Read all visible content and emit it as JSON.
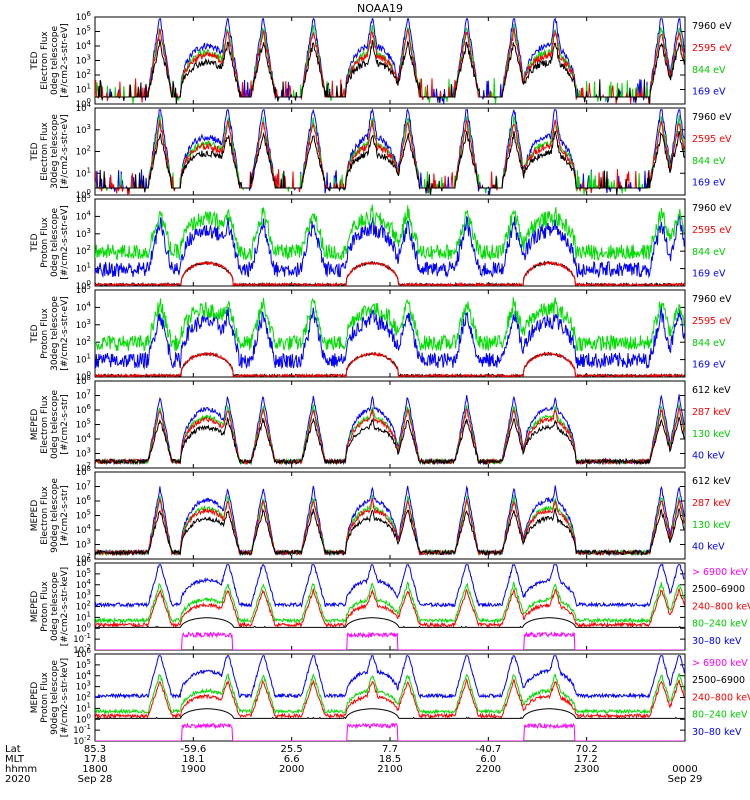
{
  "title": "NOAA19",
  "chart_data": [
    {
      "type": "line",
      "panel": 1,
      "ylabel_lines": [
        "TED",
        "Electron Flux",
        "0deg telescope",
        "[#/cm2-s-str-eV]"
      ],
      "ylim_exp": [
        0,
        6
      ],
      "legend": [
        {
          "label": "7960 eV",
          "color": "#000000"
        },
        {
          "label": "2595 eV",
          "color": "#ff0000"
        },
        {
          "label": "844 eV",
          "color": "#00dd00"
        },
        {
          "label": "169 eV",
          "color": "#0000ff"
        }
      ],
      "profile": "ted_e0",
      "series_order": [
        "#0000ff",
        "#00dd00",
        "#ff0000",
        "#000000"
      ]
    },
    {
      "type": "line",
      "panel": 2,
      "ylabel_lines": [
        "TED",
        "Electron Flux",
        "30deg telescope",
        "[#/cm2-s-str-eV]"
      ],
      "ylim_exp": [
        0,
        4
      ],
      "legend": [
        {
          "label": "7960 eV",
          "color": "#000000"
        },
        {
          "label": "2595 eV",
          "color": "#ff0000"
        },
        {
          "label": "844 eV",
          "color": "#00dd00"
        },
        {
          "label": "169 eV",
          "color": "#0000ff"
        }
      ],
      "profile": "ted_e30",
      "series_order": [
        "#0000ff",
        "#00dd00",
        "#ff0000",
        "#000000"
      ]
    },
    {
      "type": "line",
      "panel": 3,
      "ylabel_lines": [
        "TED",
        "Proton Flux",
        "0deg telescope",
        "[#/cm2-s-str-eV]"
      ],
      "ylim_exp": [
        0,
        5
      ],
      "legend": [
        {
          "label": "7960 eV",
          "color": "#000000"
        },
        {
          "label": "2595 eV",
          "color": "#ff0000"
        },
        {
          "label": "844 eV",
          "color": "#00dd00"
        },
        {
          "label": "169 eV",
          "color": "#0000ff"
        }
      ],
      "profile": "ted_p0",
      "series_order": [
        "#000000",
        "#ff0000",
        "#0000ff",
        "#00dd00"
      ]
    },
    {
      "type": "line",
      "panel": 4,
      "ylabel_lines": [
        "TED",
        "Proton Flux",
        "30deg telescope",
        "[#/cm2-s-str-eV]"
      ],
      "ylim_exp": [
        0,
        5
      ],
      "legend": [
        {
          "label": "7960 eV",
          "color": "#000000"
        },
        {
          "label": "2595 eV",
          "color": "#ff0000"
        },
        {
          "label": "844 eV",
          "color": "#00dd00"
        },
        {
          "label": "169 eV",
          "color": "#0000ff"
        }
      ],
      "profile": "ted_p30",
      "series_order": [
        "#000000",
        "#ff0000",
        "#0000ff",
        "#00dd00"
      ]
    },
    {
      "type": "line",
      "panel": 5,
      "ylabel_lines": [
        "MEPED",
        "Electron Flux",
        "0deg telescope",
        "[#/cm2-s-str]"
      ],
      "ylim_exp": [
        2,
        8
      ],
      "legend": [
        {
          "label": "612 keV",
          "color": "#000000"
        },
        {
          "label": "287 keV",
          "color": "#ff0000"
        },
        {
          "label": "130 keV",
          "color": "#00dd00"
        },
        {
          "label": "40 keV",
          "color": "#0000ff"
        }
      ],
      "profile": "mep_e0",
      "series_order": [
        "#0000ff",
        "#00dd00",
        "#ff0000",
        "#000000"
      ]
    },
    {
      "type": "line",
      "panel": 6,
      "ylabel_lines": [
        "MEPED",
        "Electron Flux",
        "90deg telescope",
        "[#/cm2-s-str]"
      ],
      "ylim_exp": [
        2,
        8
      ],
      "legend": [
        {
          "label": "612 keV",
          "color": "#000000"
        },
        {
          "label": "287 keV",
          "color": "#ff0000"
        },
        {
          "label": "130 keV",
          "color": "#00dd00"
        },
        {
          "label": "40 keV",
          "color": "#0000ff"
        }
      ],
      "profile": "mep_e90",
      "series_order": [
        "#0000ff",
        "#00dd00",
        "#ff0000",
        "#000000"
      ]
    },
    {
      "type": "line",
      "panel": 7,
      "ylabel_lines": [
        "MEPED",
        "Proton Flux",
        "0deg telescope",
        "[#/cm2-s-str-keV]"
      ],
      "ylim_exp": [
        -2,
        6
      ],
      "legend": [
        {
          "label": "> 6900 keV",
          "color": "#ff00ff"
        },
        {
          "label": "2500–6900",
          "color": "#000000"
        },
        {
          "label": "240–800 keV",
          "color": "#ff0000"
        },
        {
          "label": "80–240 keV",
          "color": "#00dd00"
        },
        {
          "label": "30–80 keV",
          "color": "#0000ff"
        }
      ],
      "profile": "mep_p0",
      "series_order": [
        "#0000ff",
        "#00dd00",
        "#ff0000",
        "#000000",
        "#ff00ff"
      ]
    },
    {
      "type": "line",
      "panel": 8,
      "ylabel_lines": [
        "MEPED",
        "Proton Flux",
        "90deg telescope",
        "[#/cm2-s-str-keV]"
      ],
      "ylim_exp": [
        -2,
        6
      ],
      "legend": [
        {
          "label": "> 6900 keV",
          "color": "#ff00ff"
        },
        {
          "label": "2500–6900",
          "color": "#000000"
        },
        {
          "label": "240–800 keV",
          "color": "#ff0000"
        },
        {
          "label": "80–240 keV",
          "color": "#00dd00"
        },
        {
          "label": "30–80 keV",
          "color": "#0000ff"
        }
      ],
      "profile": "mep_p90",
      "series_order": [
        "#0000ff",
        "#00dd00",
        "#ff0000",
        "#000000",
        "#ff00ff"
      ]
    }
  ],
  "x_axis": {
    "row_labels": [
      "Lat",
      "MLT",
      "hhmm",
      "2020"
    ],
    "columns": [
      {
        "lat": "85.3",
        "mlt": "17.8",
        "hhmm": "1800",
        "date": "Sep 28"
      },
      {
        "lat": "-59.6",
        "mlt": "18.1",
        "hhmm": "1900",
        "date": ""
      },
      {
        "lat": "25.5",
        "mlt": "6.6",
        "hhmm": "2000",
        "date": ""
      },
      {
        "lat": "7.7",
        "mlt": "18.5",
        "hhmm": "2100",
        "date": ""
      },
      {
        "lat": "-40.7",
        "mlt": "6.0",
        "hhmm": "2200",
        "date": ""
      },
      {
        "lat": "70.2",
        "mlt": "17.2",
        "hhmm": "2300",
        "date": ""
      },
      {
        "lat": "",
        "mlt": "",
        "hhmm": "0000",
        "date": "Sep 29"
      }
    ],
    "time_range_hours": [
      18,
      24
    ]
  }
}
